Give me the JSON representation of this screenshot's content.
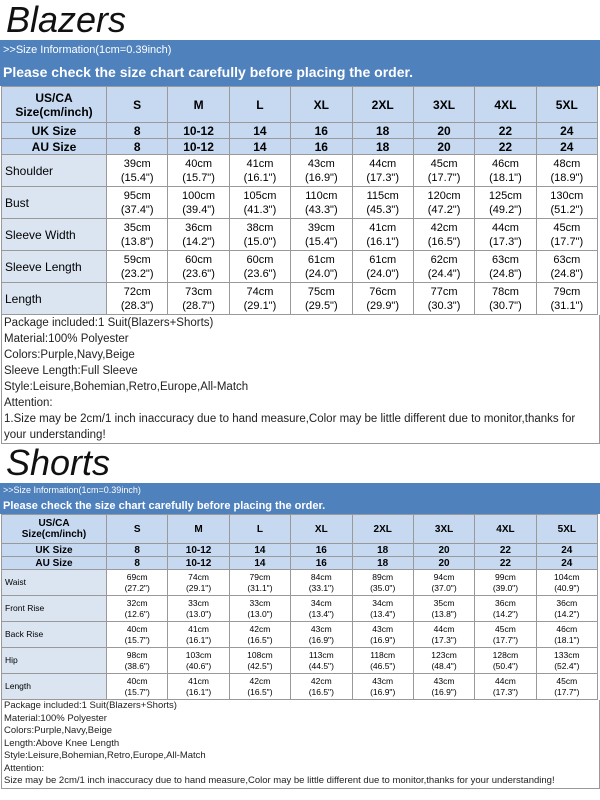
{
  "blazers": {
    "title": "Blazers",
    "info": ">>Size Information(1cm=0.39inch)",
    "notice": "Please check the size chart carefully before placing the order.",
    "header": {
      "label": [
        "US/CA",
        "Size(cm/inch)"
      ],
      "sizes": [
        "S",
        "M",
        "L",
        "XL",
        "2XL",
        "3XL",
        "4XL",
        "5XL"
      ]
    },
    "uk": {
      "label": "UK Size",
      "sizes": [
        "8",
        "10-12",
        "14",
        "16",
        "18",
        "20",
        "22",
        "24"
      ]
    },
    "au": {
      "label": "AU Size",
      "sizes": [
        "8",
        "10-12",
        "14",
        "16",
        "18",
        "20",
        "22",
        "24"
      ]
    },
    "rows": [
      {
        "label": "Shoulder",
        "cells": [
          [
            "39cm",
            "(15.4\")"
          ],
          [
            "40cm",
            "(15.7\")"
          ],
          [
            "41cm",
            "(16.1\")"
          ],
          [
            "43cm",
            "(16.9\")"
          ],
          [
            "44cm",
            "(17.3\")"
          ],
          [
            "45cm",
            "(17.7\")"
          ],
          [
            "46cm",
            "(18.1\")"
          ],
          [
            "48cm",
            "(18.9\")"
          ]
        ]
      },
      {
        "label": "Bust",
        "cells": [
          [
            "95cm",
            "(37.4\")"
          ],
          [
            "100cm",
            "(39.4\")"
          ],
          [
            "105cm",
            "(41.3\")"
          ],
          [
            "110cm",
            "(43.3\")"
          ],
          [
            "115cm",
            "(45.3\")"
          ],
          [
            "120cm",
            "(47.2\")"
          ],
          [
            "125cm",
            "(49.2\")"
          ],
          [
            "130cm",
            "(51.2\")"
          ]
        ]
      },
      {
        "label": "Sleeve Width",
        "cells": [
          [
            "35cm",
            "(13.8\")"
          ],
          [
            "36cm",
            "(14.2\")"
          ],
          [
            "38cm",
            "(15.0\")"
          ],
          [
            "39cm",
            "(15.4\")"
          ],
          [
            "41cm",
            "(16.1\")"
          ],
          [
            "42cm",
            "(16.5\")"
          ],
          [
            "44cm",
            "(17.3\")"
          ],
          [
            "45cm",
            "(17.7\")"
          ]
        ]
      },
      {
        "label": "Sleeve Length",
        "cells": [
          [
            "59cm",
            "(23.2\")"
          ],
          [
            "60cm",
            "(23.6\")"
          ],
          [
            "60cm",
            "(23.6\")"
          ],
          [
            "61cm",
            "(24.0\")"
          ],
          [
            "61cm",
            "(24.0\")"
          ],
          [
            "62cm",
            "(24.4\")"
          ],
          [
            "63cm",
            "(24.8\")"
          ],
          [
            "63cm",
            "(24.8\")"
          ]
        ]
      },
      {
        "label": "Length",
        "cells": [
          [
            "72cm",
            "(28.3\")"
          ],
          [
            "73cm",
            "(28.7\")"
          ],
          [
            "74cm",
            "(29.1\")"
          ],
          [
            "75cm",
            "(29.5\")"
          ],
          [
            "76cm",
            "(29.9\")"
          ],
          [
            "77cm",
            "(30.3\")"
          ],
          [
            "78cm",
            "(30.7\")"
          ],
          [
            "79cm",
            "(31.1\")"
          ]
        ]
      }
    ],
    "notes": [
      "Package included:1 Suit(Blazers+Shorts)",
      "Material:100% Polyester",
      "Colors:Purple,Navy,Beige",
      "Sleeve Length:Full Sleeve",
      "Style:Leisure,Bohemian,Retro,Europe,All-Match",
      "Attention:",
      "1.Size may be 2cm/1 inch inaccuracy due to hand measure,Color may be little different due to monitor,thanks for your understanding!"
    ]
  },
  "shorts": {
    "title": "Shorts",
    "info": ">>Size Information(1cm=0.39inch)",
    "notice": "Please check the size chart carefully before placing the order.",
    "header": {
      "label": [
        "US/CA",
        "Size(cm/inch)"
      ],
      "sizes": [
        "S",
        "M",
        "L",
        "XL",
        "2XL",
        "3XL",
        "4XL",
        "5XL"
      ]
    },
    "uk": {
      "label": "UK Size",
      "sizes": [
        "8",
        "10-12",
        "14",
        "16",
        "18",
        "20",
        "22",
        "24"
      ]
    },
    "au": {
      "label": "AU Size",
      "sizes": [
        "8",
        "10-12",
        "14",
        "16",
        "18",
        "20",
        "22",
        "24"
      ]
    },
    "rows": [
      {
        "label": "Waist",
        "cells": [
          [
            "69cm",
            "(27.2\")"
          ],
          [
            "74cm",
            "(29.1\")"
          ],
          [
            "79cm",
            "(31.1\")"
          ],
          [
            "84cm",
            "(33.1\")"
          ],
          [
            "89cm",
            "(35.0\")"
          ],
          [
            "94cm",
            "(37.0\")"
          ],
          [
            "99cm",
            "(39.0\")"
          ],
          [
            "104cm",
            "(40.9\")"
          ]
        ]
      },
      {
        "label": "Front Rise",
        "cells": [
          [
            "32cm",
            "(12.6\")"
          ],
          [
            "33cm",
            "(13.0\")"
          ],
          [
            "33cm",
            "(13.0\")"
          ],
          [
            "34cm",
            "(13.4\")"
          ],
          [
            "34cm",
            "(13.4\")"
          ],
          [
            "35cm",
            "(13.8\")"
          ],
          [
            "36cm",
            "(14.2\")"
          ],
          [
            "36cm",
            "(14.2\")"
          ]
        ]
      },
      {
        "label": "Back Rise",
        "cells": [
          [
            "40cm",
            "(15.7\")"
          ],
          [
            "41cm",
            "(16.1\")"
          ],
          [
            "42cm",
            "(16.5\")"
          ],
          [
            "43cm",
            "(16.9\")"
          ],
          [
            "43cm",
            "(16.9\")"
          ],
          [
            "44cm",
            "(17.3\")"
          ],
          [
            "45cm",
            "(17.7\")"
          ],
          [
            "46cm",
            "(18.1\")"
          ]
        ]
      },
      {
        "label": "Hip",
        "cells": [
          [
            "98cm",
            "(38.6\")"
          ],
          [
            "103cm",
            "(40.6\")"
          ],
          [
            "108cm",
            "(42.5\")"
          ],
          [
            "113cm",
            "(44.5\")"
          ],
          [
            "118cm",
            "(46.5\")"
          ],
          [
            "123cm",
            "(48.4\")"
          ],
          [
            "128cm",
            "(50.4\")"
          ],
          [
            "133cm",
            "(52.4\")"
          ]
        ]
      },
      {
        "label": "Length",
        "cells": [
          [
            "40cm",
            "(15.7\")"
          ],
          [
            "41cm",
            "(16.1\")"
          ],
          [
            "42cm",
            "(16.5\")"
          ],
          [
            "42cm",
            "(16.5\")"
          ],
          [
            "43cm",
            "(16.9\")"
          ],
          [
            "43cm",
            "(16.9\")"
          ],
          [
            "44cm",
            "(17.3\")"
          ],
          [
            "45cm",
            "(17.7\")"
          ]
        ]
      }
    ],
    "notes": [
      "Package included:1 Suit(Blazers+Shorts)",
      "Material:100% Polyester",
      "Colors:Purple,Navy,Beige",
      "Length:Above Knee Length",
      "Style:Leisure,Bohemian,Retro,Europe,All-Match",
      "Attention:",
      "Size may be 2cm/1 inch inaccuracy due to hand measure,Color may be little different due to monitor,thanks for your understanding!"
    ]
  }
}
